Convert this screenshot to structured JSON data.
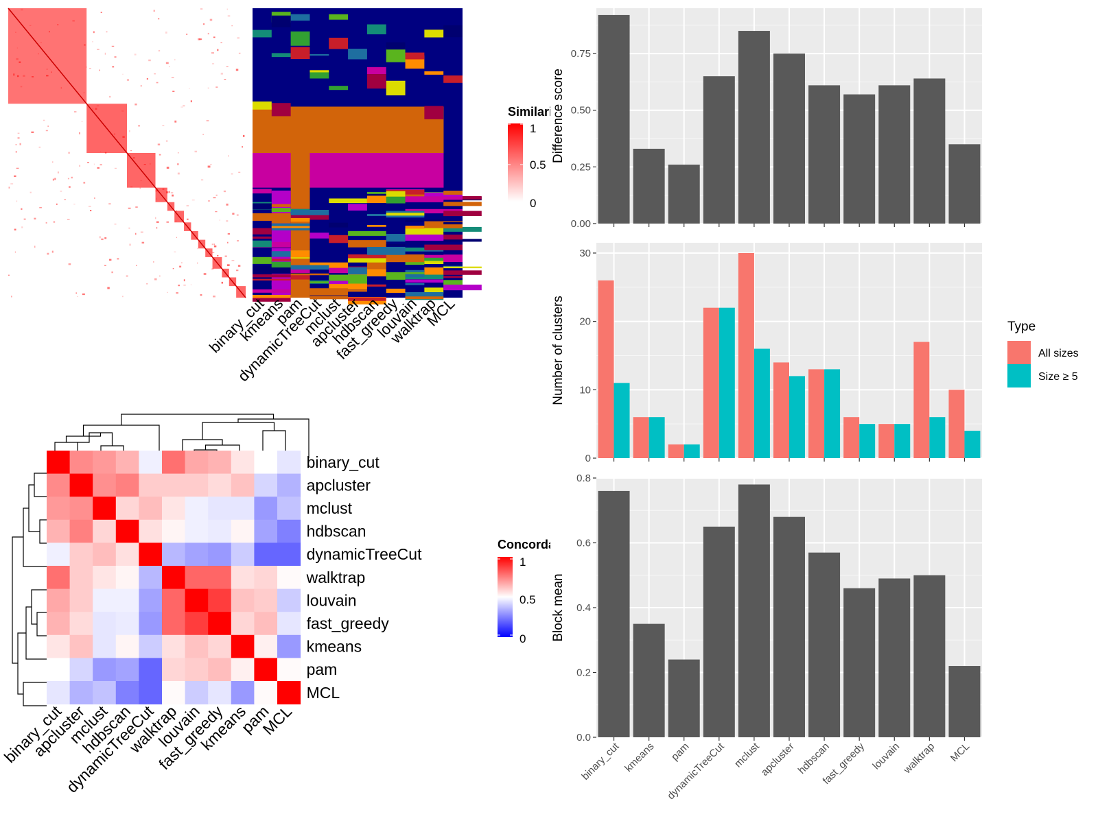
{
  "methods": [
    "binary_cut",
    "kmeans",
    "pam",
    "dynamicTreeCut",
    "mclust",
    "apcluster",
    "hdbscan",
    "fast_greedy",
    "louvain",
    "walktrap",
    "MCL"
  ],
  "colors": {
    "heat_low": "#ffffff",
    "heat_high": "#ff0000",
    "conc_low": "#0000ff",
    "conc_mid": "#ffffff",
    "conc_high": "#ff0000",
    "bar_fill": "#595959",
    "panel_bg": "#ebebeb",
    "grid": "#ffffff",
    "type_all": "#f8766d",
    "type_size5": "#00bfc4",
    "cluster_bg": "#000080"
  },
  "similarity_legend": {
    "title": "Similarity",
    "ticks": [
      "1",
      "0.5",
      "0"
    ]
  },
  "concordance": {
    "legend_title": "Concordance",
    "legend_ticks": [
      "1",
      "0.5",
      "0"
    ],
    "row_labels": [
      "binary_cut",
      "apcluster",
      "mclust",
      "hdbscan",
      "dynamicTreeCut",
      "walktrap",
      "louvain",
      "fast_greedy",
      "kmeans",
      "pam",
      "MCL"
    ],
    "col_labels": [
      "binary_cut",
      "apcluster",
      "mclust",
      "hdbscan",
      "dynamicTreeCut",
      "walktrap",
      "louvain",
      "fast_greedy",
      "kmeans",
      "pam",
      "MCL"
    ],
    "matrix": [
      [
        1.0,
        0.73,
        0.7,
        0.65,
        0.47,
        0.78,
        0.67,
        0.65,
        0.55,
        0.5,
        0.45
      ],
      [
        0.73,
        1.0,
        0.72,
        0.75,
        0.6,
        0.6,
        0.6,
        0.57,
        0.62,
        0.42,
        0.35
      ],
      [
        0.7,
        0.72,
        1.0,
        0.58,
        0.63,
        0.55,
        0.47,
        0.45,
        0.45,
        0.3,
        0.38
      ],
      [
        0.65,
        0.75,
        0.58,
        1.0,
        0.56,
        0.52,
        0.47,
        0.46,
        0.52,
        0.32,
        0.25
      ],
      [
        0.47,
        0.6,
        0.63,
        0.56,
        1.0,
        0.36,
        0.32,
        0.3,
        0.4,
        0.2,
        0.2
      ],
      [
        0.78,
        0.6,
        0.55,
        0.52,
        0.36,
        1.0,
        0.8,
        0.8,
        0.56,
        0.58,
        0.51
      ],
      [
        0.67,
        0.6,
        0.47,
        0.47,
        0.32,
        0.8,
        1.0,
        0.88,
        0.62,
        0.6,
        0.4
      ],
      [
        0.65,
        0.57,
        0.45,
        0.46,
        0.3,
        0.8,
        0.88,
        1.0,
        0.58,
        0.63,
        0.45
      ],
      [
        0.55,
        0.62,
        0.45,
        0.52,
        0.4,
        0.56,
        0.62,
        0.58,
        1.0,
        0.53,
        0.3
      ],
      [
        0.5,
        0.42,
        0.3,
        0.32,
        0.2,
        0.58,
        0.6,
        0.63,
        0.53,
        1.0,
        0.51
      ],
      [
        0.45,
        0.35,
        0.38,
        0.25,
        0.2,
        0.51,
        0.4,
        0.45,
        0.3,
        0.51,
        1.0
      ]
    ]
  },
  "chart_data": [
    {
      "type": "bar",
      "categories": [
        "binary_cut",
        "kmeans",
        "pam",
        "dynamicTreeCut",
        "mclust",
        "apcluster",
        "hdbscan",
        "fast_greedy",
        "louvain",
        "walktrap",
        "MCL"
      ],
      "values": [
        0.92,
        0.33,
        0.26,
        0.65,
        0.85,
        0.75,
        0.61,
        0.57,
        0.61,
        0.64,
        0.35
      ],
      "title": "",
      "xlabel": "",
      "ylabel": "Difference score",
      "ylim": [
        0,
        0.95
      ],
      "yticks": [
        "0.00",
        "0.25",
        "0.50",
        "0.75"
      ],
      "grid": true
    },
    {
      "type": "bar",
      "categories": [
        "binary_cut",
        "kmeans",
        "pam",
        "dynamicTreeCut",
        "mclust",
        "apcluster",
        "hdbscan",
        "fast_greedy",
        "louvain",
        "walktrap",
        "MCL"
      ],
      "series": [
        {
          "name": "All sizes",
          "values": [
            26,
            6,
            2,
            22,
            30,
            14,
            13,
            6,
            5,
            17,
            10
          ]
        },
        {
          "name": "Size ≥ 5",
          "values": [
            11,
            6,
            2,
            22,
            16,
            12,
            13,
            5,
            5,
            6,
            4
          ]
        }
      ],
      "title": "",
      "xlabel": "",
      "ylabel": "Number of clusters",
      "ylim": [
        0,
        31.5
      ],
      "yticks": [
        "0",
        "10",
        "20",
        "30"
      ],
      "legend_title": "Type",
      "legend_position": "right",
      "grid": true
    },
    {
      "type": "bar",
      "categories": [
        "binary_cut",
        "kmeans",
        "pam",
        "dynamicTreeCut",
        "mclust",
        "apcluster",
        "hdbscan",
        "fast_greedy",
        "louvain",
        "walktrap",
        "MCL"
      ],
      "values": [
        0.76,
        0.35,
        0.24,
        0.65,
        0.78,
        0.68,
        0.57,
        0.46,
        0.49,
        0.5,
        0.22
      ],
      "title": "",
      "xlabel": "",
      "ylabel": "Block mean",
      "ylim": [
        0,
        0.8
      ],
      "yticks": [
        "0.0",
        "0.2",
        "0.4",
        "0.6",
        "0.8"
      ],
      "grid": true
    }
  ]
}
